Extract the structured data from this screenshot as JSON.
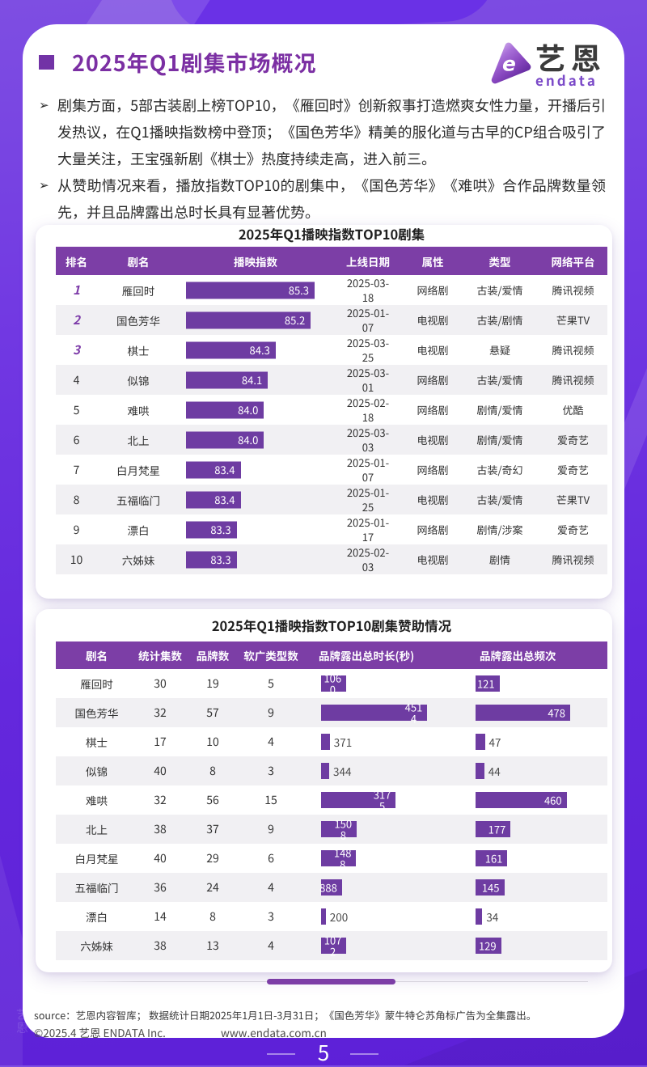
{
  "page": {
    "number": "5",
    "colors": {
      "background_violet": "#6527DF",
      "header_purple": "#7C3EA6",
      "bar_purple": "#7040A4",
      "title_purple": "#7B2FA3",
      "stripe_gray": "#F1F0F3"
    }
  },
  "logo": {
    "name_zh": "艺恩",
    "name_en": "endata",
    "mark": "endata-logo-mark"
  },
  "header": {
    "title": "2025年Q1剧集市场概况"
  },
  "summary": {
    "marker": "➢",
    "bullets": [
      "剧集方面，5部古装剧上榜TOP10，《雁回时》创新叙事打造燃爽女性力量，开播后引发热议，在Q1播映指数榜中登顶；《国色芳华》精美的服化道与古早的CP组合吸引了大量关注，王宝强新剧《棋士》热度持续走高，进入前三。",
      "从赞助情况来看，播放指数TOP10的剧集中，《国色芳华》《难哄》合作品牌数量领先，并且品牌露出总时长具有显著优势。"
    ]
  },
  "playback_table": {
    "title": "2025年Q1播映指数TOP10剧集",
    "columns": [
      "排名",
      "剧名",
      "播映指数",
      "上线日期",
      "属性",
      "类型",
      "网络平台"
    ],
    "rows": [
      {
        "rank": "1",
        "name": "雁回时",
        "index": "85.3",
        "date": "2025-03-18",
        "attribute": "网络剧",
        "genre": "古装/爱情",
        "platform": "腾讯视频"
      },
      {
        "rank": "2",
        "name": "国色芳华",
        "index": "85.2",
        "date": "2025-01-07",
        "attribute": "电视剧",
        "genre": "古装/剧情",
        "platform": "芒果TV"
      },
      {
        "rank": "3",
        "name": "棋士",
        "index": "84.3",
        "date": "2025-03-25",
        "attribute": "电视剧",
        "genre": "悬疑",
        "platform": "腾讯视频"
      },
      {
        "rank": "4",
        "name": "似锦",
        "index": "84.1",
        "date": "2025-03-01",
        "attribute": "网络剧",
        "genre": "古装/爱情",
        "platform": "腾讯视频"
      },
      {
        "rank": "5",
        "name": "难哄",
        "index": "84.0",
        "date": "2025-02-18",
        "attribute": "网络剧",
        "genre": "剧情/爱情",
        "platform": "优酷"
      },
      {
        "rank": "6",
        "name": "北上",
        "index": "84.0",
        "date": "2025-03-03",
        "attribute": "电视剧",
        "genre": "剧情/爱情",
        "platform": "爱奇艺"
      },
      {
        "rank": "7",
        "name": "白月梵星",
        "index": "83.4",
        "date": "2025-01-07",
        "attribute": "网络剧",
        "genre": "古装/奇幻",
        "platform": "爱奇艺"
      },
      {
        "rank": "8",
        "name": "五福临门",
        "index": "83.4",
        "date": "2025-01-25",
        "attribute": "电视剧",
        "genre": "古装/爱情",
        "platform": "芒果TV"
      },
      {
        "rank": "9",
        "name": "漂白",
        "index": "83.3",
        "date": "2025-01-17",
        "attribute": "网络剧",
        "genre": "剧情/涉案",
        "platform": "爱奇艺"
      },
      {
        "rank": "10",
        "name": "六姊妹",
        "index": "83.3",
        "date": "2025-02-03",
        "attribute": "电视剧",
        "genre": "剧情",
        "platform": "腾讯视频"
      }
    ]
  },
  "sponsor_table": {
    "title": "2025年Q1播映指数TOP10剧集赞助情况",
    "columns": [
      "剧名",
      "统计集数",
      "品牌数",
      "软广类型数",
      "品牌露出总时长(秒)",
      "品牌露出总频次"
    ],
    "rows": [
      {
        "name": "雁回时",
        "episodes": "30",
        "brands": "19",
        "soft_ad_types": "5",
        "exposure_duration": "1060",
        "exposure_frequency": "121"
      },
      {
        "name": "国色芳华",
        "episodes": "32",
        "brands": "57",
        "soft_ad_types": "9",
        "exposure_duration": "4514",
        "exposure_frequency": "478"
      },
      {
        "name": "棋士",
        "episodes": "17",
        "brands": "10",
        "soft_ad_types": "4",
        "exposure_duration": "371",
        "exposure_frequency": "47"
      },
      {
        "name": "似锦",
        "episodes": "40",
        "brands": "8",
        "soft_ad_types": "3",
        "exposure_duration": "344",
        "exposure_frequency": "44"
      },
      {
        "name": "难哄",
        "episodes": "32",
        "brands": "56",
        "soft_ad_types": "15",
        "exposure_duration": "3175",
        "exposure_frequency": "460"
      },
      {
        "name": "北上",
        "episodes": "38",
        "brands": "37",
        "soft_ad_types": "9",
        "exposure_duration": "1508",
        "exposure_frequency": "177"
      },
      {
        "name": "白月梵星",
        "episodes": "40",
        "brands": "29",
        "soft_ad_types": "6",
        "exposure_duration": "1488",
        "exposure_frequency": "161"
      },
      {
        "name": "五福临门",
        "episodes": "36",
        "brands": "24",
        "soft_ad_types": "4",
        "exposure_duration": "888",
        "exposure_frequency": "145"
      },
      {
        "name": "漂白",
        "episodes": "14",
        "brands": "8",
        "soft_ad_types": "3",
        "exposure_duration": "200",
        "exposure_frequency": "34"
      },
      {
        "name": "六姊妹",
        "episodes": "38",
        "brands": "13",
        "soft_ad_types": "4",
        "exposure_duration": "1072",
        "exposure_frequency": "129"
      }
    ]
  },
  "footer": {
    "source": "source：艺恩内容智库； 数据统计日期2025年1月1日-3月31日；《国色芳华》蒙牛特仑苏角标广告为全集露出。",
    "copyright": "©2025.4 艺恩 ENDATA Inc.",
    "website": "www.endata.com.cn"
  },
  "chart_data": [
    {
      "type": "bar",
      "orientation": "horizontal",
      "title": "2025年Q1播映指数TOP10剧集",
      "series_name": "播映指数",
      "categories": [
        "雁回时",
        "国色芳华",
        "棋士",
        "似锦",
        "难哄",
        "北上",
        "白月梵星",
        "五福临门",
        "漂白",
        "六姊妹"
      ],
      "values": [
        85.3,
        85.2,
        84.3,
        84.1,
        84.0,
        84.0,
        83.4,
        83.4,
        83.3,
        83.3
      ],
      "xlim": [
        82,
        85.5
      ],
      "legend_position": "none",
      "grid": false
    },
    {
      "type": "bar",
      "orientation": "horizontal",
      "title": "2025年Q1播映指数TOP10剧集赞助情况",
      "categories": [
        "雁回时",
        "国色芳华",
        "棋士",
        "似锦",
        "难哄",
        "北上",
        "白月梵星",
        "五福临门",
        "漂白",
        "六姊妹"
      ],
      "series": [
        {
          "name": "品牌露出总时长(秒)",
          "values": [
            1060,
            4514,
            371,
            344,
            3175,
            1508,
            1488,
            888,
            200,
            1072
          ],
          "xlim": [
            0,
            4600
          ]
        },
        {
          "name": "品牌露出总频次",
          "values": [
            121,
            478,
            47,
            44,
            460,
            177,
            161,
            145,
            34,
            129
          ],
          "xlim": [
            0,
            490
          ]
        }
      ],
      "legend_position": "none",
      "grid": false
    }
  ]
}
